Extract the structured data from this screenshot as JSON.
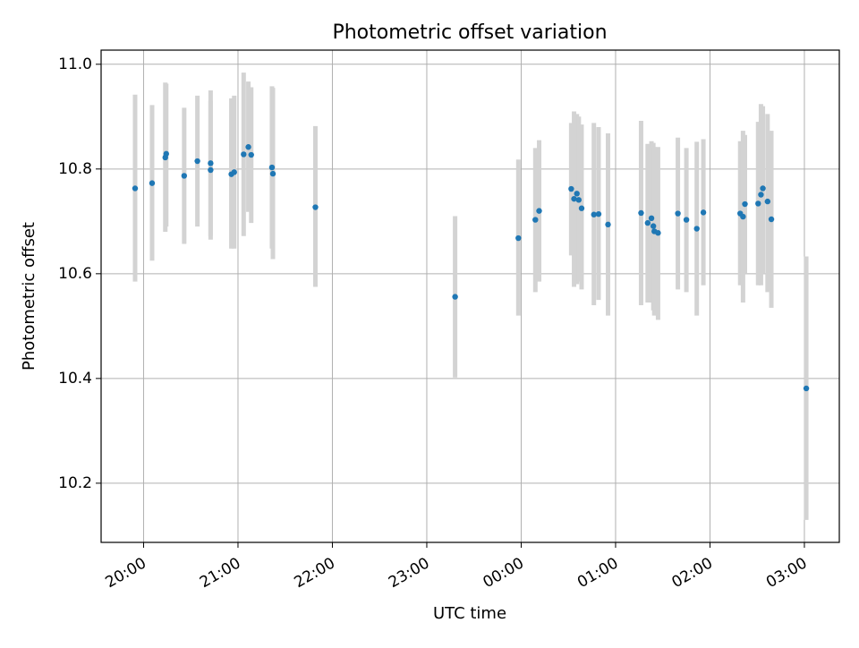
{
  "chart_data": {
    "type": "scatter",
    "title": "Photometric offset variation",
    "xlabel": "UTC time",
    "ylabel": "Photometric offset",
    "grid": true,
    "x_unit": "hours since 00:00 UTC",
    "xlim": [
      -4.45,
      3.37
    ],
    "ylim": [
      10.087,
      11.027
    ],
    "x_ticks": [
      {
        "value": -4,
        "label": "20:00"
      },
      {
        "value": -3,
        "label": "21:00"
      },
      {
        "value": -2,
        "label": "22:00"
      },
      {
        "value": -1,
        "label": "23:00"
      },
      {
        "value": 0,
        "label": "00:00"
      },
      {
        "value": 1,
        "label": "01:00"
      },
      {
        "value": 2,
        "label": "02:00"
      },
      {
        "value": 3,
        "label": "03:00"
      }
    ],
    "y_ticks": [
      {
        "value": 10.2,
        "label": "10.2"
      },
      {
        "value": 10.4,
        "label": "10.4"
      },
      {
        "value": 10.6,
        "label": "10.6"
      },
      {
        "value": 10.8,
        "label": "10.8"
      },
      {
        "value": 11.0,
        "label": "11.0"
      }
    ],
    "colors": {
      "marker": "#1f77b4",
      "errorbar": "#d3d3d3",
      "grid": "#b0b0b0"
    },
    "points": [
      {
        "t": -4.09,
        "y": 10.763,
        "lo": 10.585,
        "hi": 10.942
      },
      {
        "t": -3.91,
        "y": 10.773,
        "lo": 10.625,
        "hi": 10.922
      },
      {
        "t": -3.77,
        "y": 10.822,
        "lo": 10.68,
        "hi": 10.965
      },
      {
        "t": -3.76,
        "y": 10.829,
        "lo": 10.69,
        "hi": 10.963
      },
      {
        "t": -3.57,
        "y": 10.787,
        "lo": 10.657,
        "hi": 10.917
      },
      {
        "t": -3.43,
        "y": 10.815,
        "lo": 10.69,
        "hi": 10.94
      },
      {
        "t": -3.29,
        "y": 10.811,
        "lo": 10.672,
        "hi": 10.95
      },
      {
        "t": -3.29,
        "y": 10.798,
        "lo": 10.665,
        "hi": 10.93
      },
      {
        "t": -3.07,
        "y": 10.79,
        "lo": 10.648,
        "hi": 10.935
      },
      {
        "t": -3.04,
        "y": 10.794,
        "lo": 10.648,
        "hi": 10.94
      },
      {
        "t": -2.94,
        "y": 10.828,
        "lo": 10.672,
        "hi": 10.984
      },
      {
        "t": -2.89,
        "y": 10.842,
        "lo": 10.718,
        "hi": 10.967
      },
      {
        "t": -2.86,
        "y": 10.827,
        "lo": 10.697,
        "hi": 10.956
      },
      {
        "t": -2.64,
        "y": 10.803,
        "lo": 10.648,
        "hi": 10.958
      },
      {
        "t": -2.63,
        "y": 10.791,
        "lo": 10.628,
        "hi": 10.955
      },
      {
        "t": -2.18,
        "y": 10.727,
        "lo": 10.575,
        "hi": 10.882
      },
      {
        "t": -0.7,
        "y": 10.556,
        "lo": 10.402,
        "hi": 10.71
      },
      {
        "t": -0.03,
        "y": 10.668,
        "lo": 10.52,
        "hi": 10.818
      },
      {
        "t": 0.15,
        "y": 10.703,
        "lo": 10.565,
        "hi": 10.84
      },
      {
        "t": 0.19,
        "y": 10.72,
        "lo": 10.585,
        "hi": 10.855
      },
      {
        "t": 0.53,
        "y": 10.762,
        "lo": 10.635,
        "hi": 10.888
      },
      {
        "t": 0.56,
        "y": 10.743,
        "lo": 10.575,
        "hi": 10.91
      },
      {
        "t": 0.59,
        "y": 10.753,
        "lo": 10.58,
        "hi": 10.905
      },
      {
        "t": 0.61,
        "y": 10.741,
        "lo": 10.585,
        "hi": 10.9
      },
      {
        "t": 0.64,
        "y": 10.725,
        "lo": 10.57,
        "hi": 10.885
      },
      {
        "t": 0.77,
        "y": 10.713,
        "lo": 10.54,
        "hi": 10.888
      },
      {
        "t": 0.82,
        "y": 10.714,
        "lo": 10.55,
        "hi": 10.88
      },
      {
        "t": 0.92,
        "y": 10.694,
        "lo": 10.52,
        "hi": 10.868
      },
      {
        "t": 1.27,
        "y": 10.716,
        "lo": 10.54,
        "hi": 10.892
      },
      {
        "t": 1.34,
        "y": 10.697,
        "lo": 10.545,
        "hi": 10.848
      },
      {
        "t": 1.38,
        "y": 10.706,
        "lo": 10.545,
        "hi": 10.853
      },
      {
        "t": 1.4,
        "y": 10.691,
        "lo": 10.53,
        "hi": 10.85
      },
      {
        "t": 1.41,
        "y": 10.681,
        "lo": 10.52,
        "hi": 10.842
      },
      {
        "t": 1.45,
        "y": 10.678,
        "lo": 10.512,
        "hi": 10.842
      },
      {
        "t": 1.66,
        "y": 10.715,
        "lo": 10.57,
        "hi": 10.86
      },
      {
        "t": 1.75,
        "y": 10.703,
        "lo": 10.565,
        "hi": 10.84
      },
      {
        "t": 1.86,
        "y": 10.686,
        "lo": 10.52,
        "hi": 10.852
      },
      {
        "t": 1.93,
        "y": 10.717,
        "lo": 10.578,
        "hi": 10.857
      },
      {
        "t": 2.32,
        "y": 10.715,
        "lo": 10.578,
        "hi": 10.853
      },
      {
        "t": 2.35,
        "y": 10.709,
        "lo": 10.545,
        "hi": 10.873
      },
      {
        "t": 2.37,
        "y": 10.733,
        "lo": 10.6,
        "hi": 10.865
      },
      {
        "t": 2.51,
        "y": 10.734,
        "lo": 10.578,
        "hi": 10.89
      },
      {
        "t": 2.54,
        "y": 10.751,
        "lo": 10.578,
        "hi": 10.924
      },
      {
        "t": 2.56,
        "y": 10.763,
        "lo": 10.6,
        "hi": 10.92
      },
      {
        "t": 2.61,
        "y": 10.738,
        "lo": 10.565,
        "hi": 10.905
      },
      {
        "t": 2.65,
        "y": 10.704,
        "lo": 10.535,
        "hi": 10.873
      },
      {
        "t": 3.02,
        "y": 10.381,
        "lo": 10.13,
        "hi": 10.633
      }
    ]
  }
}
